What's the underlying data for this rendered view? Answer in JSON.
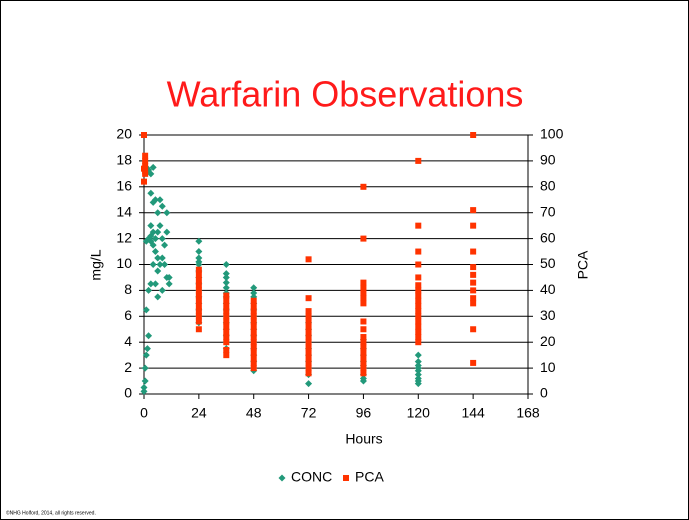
{
  "chart_data": {
    "type": "scatter",
    "title": "Warfarin Observations",
    "xlabel": "Hours",
    "ylabel": "mg/L",
    "y2label": "PCA",
    "footer": "©NHG Holford, 2014, all rights reserved.",
    "xlim": [
      0,
      168
    ],
    "xticks": [
      0,
      24,
      48,
      72,
      96,
      120,
      144,
      168
    ],
    "ylim": [
      0,
      20
    ],
    "yticks": [
      0,
      2,
      4,
      6,
      8,
      10,
      12,
      14,
      16,
      18,
      20
    ],
    "y2lim": [
      0,
      100
    ],
    "y2ticks": [
      0,
      10,
      20,
      30,
      40,
      50,
      60,
      70,
      80,
      90,
      100
    ],
    "grid": true,
    "legend": "bottom",
    "series": [
      {
        "name": "CONC",
        "color": "#22997a",
        "marker": "diamond",
        "x": [
          0,
          0,
          0.5,
          0.5,
          1,
          1.5,
          2,
          1,
          2,
          3,
          1,
          2,
          3,
          4,
          3,
          4,
          5,
          6,
          7,
          8,
          10,
          3,
          4,
          5,
          6,
          7,
          8,
          9,
          10,
          3,
          4,
          5,
          6,
          7,
          8,
          9,
          10,
          11,
          11,
          6,
          4,
          2,
          1,
          3,
          6,
          8,
          5,
          24,
          24,
          24,
          24,
          24,
          24,
          24,
          24,
          24,
          24,
          24,
          24,
          24,
          24,
          36,
          36,
          36,
          36,
          36,
          36,
          36,
          36,
          36,
          36,
          36,
          36,
          36,
          36,
          36,
          48,
          48,
          48,
          48,
          48,
          48,
          48,
          48,
          48,
          48,
          48,
          48,
          48,
          48,
          48,
          72,
          72,
          72,
          72,
          72,
          72,
          72,
          72,
          72,
          72,
          96,
          96,
          96,
          96,
          96,
          96,
          96,
          96,
          96,
          120,
          120,
          120,
          120,
          120,
          120,
          120,
          120,
          120
        ],
        "values": [
          0.2,
          0.5,
          1,
          2,
          3,
          3.5,
          4.5,
          6.5,
          8,
          8.5,
          17.5,
          17.3,
          17,
          17.5,
          15.5,
          14.8,
          15,
          14,
          15,
          14.5,
          14,
          13,
          12.5,
          12,
          12.5,
          13,
          12,
          11.5,
          12.5,
          11.8,
          11.5,
          11,
          10.5,
          10,
          10.5,
          10,
          9,
          8.5,
          9,
          9.5,
          10,
          12,
          11.8,
          12.2,
          7.5,
          8,
          8.5,
          11.8,
          11,
          10.5,
          10,
          9.5,
          9,
          8.5,
          8,
          7.5,
          7,
          6.5,
          6,
          5.5,
          10.2,
          10,
          9.3,
          9,
          8.6,
          8.2,
          7.8,
          7.5,
          7,
          6.5,
          6,
          5.5,
          5,
          4.5,
          4,
          3.5,
          8.2,
          7.8,
          7.5,
          7,
          6.5,
          6,
          5.5,
          5,
          4.5,
          4,
          3.5,
          3,
          2.5,
          2,
          1.8,
          5.5,
          5,
          4.5,
          4,
          3.5,
          3,
          2.5,
          2,
          1.5,
          0.8,
          4.2,
          3.5,
          3,
          2.5,
          2,
          1.5,
          1.2,
          1,
          2.2,
          3,
          2.5,
          2.2,
          2,
          1.8,
          1.5,
          1.2,
          1,
          0.8
        ]
      },
      {
        "name": "PCA",
        "color": "#ff3300",
        "marker": "square",
        "axis": "y2",
        "x": [
          0,
          0.5,
          0.5,
          0.5,
          0,
          0.5,
          0.5,
          0,
          24,
          24,
          24,
          24,
          24,
          24,
          24,
          24,
          24,
          24,
          24,
          24,
          36,
          36,
          36,
          36,
          36,
          36,
          36,
          36,
          36,
          36,
          36,
          36,
          48,
          48,
          48,
          48,
          48,
          48,
          48,
          48,
          48,
          48,
          48,
          48,
          48,
          48,
          72,
          72,
          72,
          72,
          72,
          72,
          72,
          72,
          72,
          72,
          72,
          72,
          72,
          72,
          72,
          96,
          96,
          96,
          96,
          96,
          96,
          96,
          96,
          96,
          96,
          96,
          96,
          96,
          96,
          96,
          96,
          96,
          120,
          120,
          120,
          120,
          120,
          120,
          120,
          120,
          120,
          120,
          120,
          120,
          120,
          120,
          120,
          120,
          120,
          144,
          144,
          144,
          144,
          144,
          144,
          144,
          144,
          144,
          144,
          144,
          144
        ],
        "values": [
          100,
          92,
          90,
          88,
          87,
          86,
          85,
          82,
          44,
          42,
          40,
          38,
          36,
          34,
          32,
          30,
          28,
          25,
          46,
          48,
          38,
          36,
          34,
          32,
          30,
          28,
          26,
          24,
          22,
          20,
          15,
          17,
          36,
          34,
          32,
          30,
          28,
          26,
          24,
          22,
          20,
          18,
          16,
          14,
          12,
          10,
          52,
          37,
          32,
          30,
          28,
          26,
          24,
          22,
          20,
          18,
          16,
          14,
          12,
          10,
          8,
          80,
          60,
          43,
          41,
          39,
          37,
          35,
          28,
          25,
          22,
          20,
          18,
          16,
          14,
          12,
          10,
          8,
          90,
          65,
          55,
          50,
          45,
          42,
          40,
          38,
          36,
          34,
          32,
          30,
          28,
          26,
          24,
          22,
          20,
          100,
          71,
          65,
          55,
          49,
          46,
          43,
          40,
          37,
          35,
          25,
          12
        ]
      }
    ]
  }
}
